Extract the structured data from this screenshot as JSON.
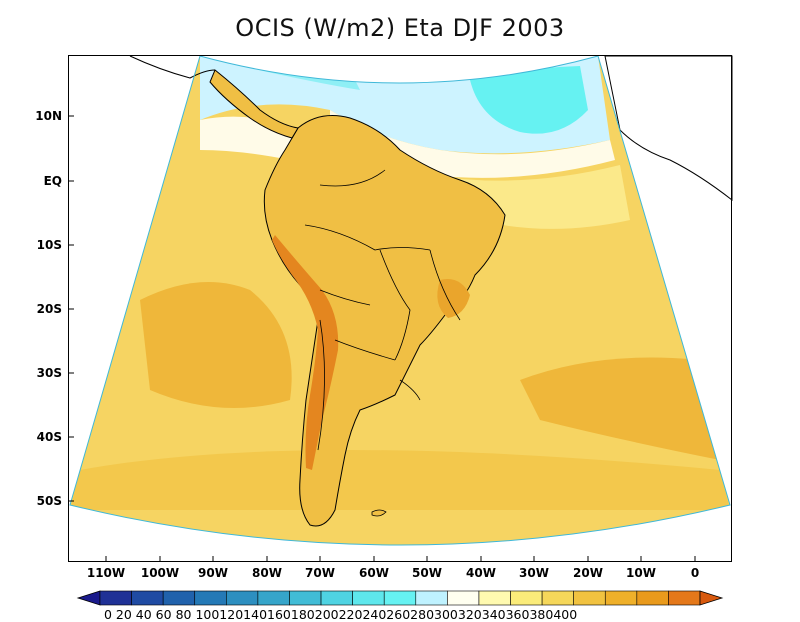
{
  "title": "OCIS (W/m2) Eta DJF 2003",
  "map": {
    "lat_labels": [
      "10N",
      "EQ",
      "10S",
      "20S",
      "30S",
      "40S",
      "50S"
    ],
    "lon_labels": [
      "110W",
      "100W",
      "90W",
      "80W",
      "70W",
      "60W",
      "50W",
      "40W",
      "30W",
      "20W",
      "10W",
      "0"
    ],
    "lon_range": [
      -120,
      7
    ],
    "lat_range": [
      -60,
      20
    ]
  },
  "colorbar": {
    "levels_text": "0  20  40  60  80 100120140160180200220240260280300320340360380400",
    "levels": [
      0,
      20,
      40,
      60,
      80,
      100,
      120,
      140,
      160,
      180,
      200,
      220,
      240,
      260,
      280,
      300,
      320,
      340,
      360,
      380,
      400
    ],
    "colors": [
      "#1a1a8c",
      "#1f3196",
      "#1f4ba3",
      "#2062ac",
      "#2479b6",
      "#2d8fc0",
      "#36a5ca",
      "#41bcd6",
      "#4fd3e2",
      "#5ee7ec",
      "#66f2f2",
      "#bff2ff",
      "#fffff0",
      "#fffab0",
      "#fbec7a",
      "#f5d75a",
      "#f1c240",
      "#efb02a",
      "#e99a1c",
      "#e4781a",
      "#d8590e"
    ]
  },
  "fill_colors": {
    "ocean_pale": "#fbeea0",
    "ocean_mid": "#f6d864",
    "ocean_deep": "#f0bd3c",
    "land": "#f0c045",
    "andes": "#e58f22",
    "cyan": "#66f2f2",
    "lightblue": "#cdf3ff",
    "cream": "#fffbe8"
  }
}
